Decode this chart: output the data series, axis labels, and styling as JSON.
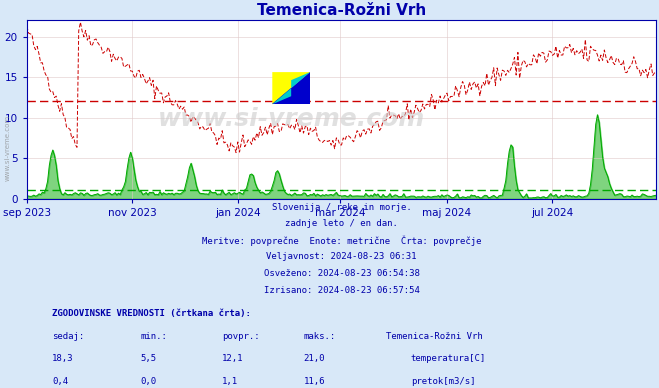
{
  "title": "Temenica-Rožni Vrh",
  "bg_color": "#d8e8f8",
  "plot_bg_color": "#ffffff",
  "grid_color": "#e0c8c8",
  "axis_color": "#0000aa",
  "text_color": "#0000aa",
  "temp_color": "#cc0000",
  "flow_color": "#00aa00",
  "temp_avg": 12.1,
  "flow_avg": 1.1,
  "ylim": [
    0,
    22
  ],
  "yticks": [
    0,
    5,
    10,
    15,
    20
  ],
  "xticklabels": [
    "sep 2023",
    "nov 2023",
    "jan 2024",
    "mar 2024",
    "maj 2024",
    "jul 2024"
  ],
  "subtitle_lines": [
    "Slovenija / reke in morje.",
    "zadnje leto / en dan.",
    "Meritve: povprečne  Enote: metrične  Črta: povprečje",
    "Veljavnost: 2024-08-23 06:31",
    "Osveženo: 2024-08-23 06:54:38",
    "Izrisano: 2024-08-23 06:57:54"
  ],
  "table_header": "ZGODOVINSKE VREDNOSTI (črtkana črta):",
  "col_headers": [
    "sedaj:",
    "min.:",
    "povpr.:",
    "maks.:",
    "Temenica-Rožni Vrh"
  ],
  "row1": [
    "18,3",
    "5,5",
    "12,1",
    "21,0",
    "temperatura[C]"
  ],
  "row2": [
    "0,4",
    "0,0",
    "1,1",
    "11,6",
    "pretok[m3/s]"
  ],
  "watermark": "www.si-vreme.com",
  "side_text": "www.si-vreme.com"
}
